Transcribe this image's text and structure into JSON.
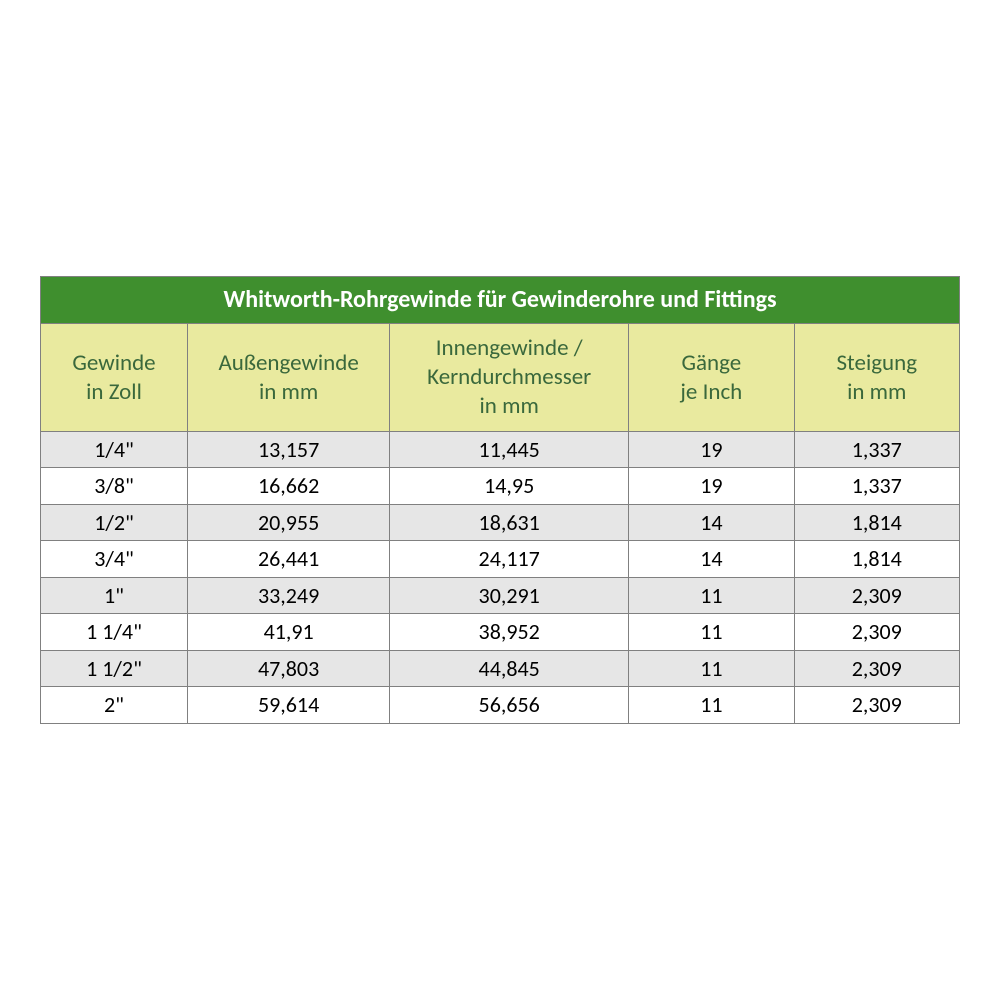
{
  "table": {
    "title": "Whitworth-Rohrgewinde für Gewinderohre und Fittings",
    "title_bg": "#3f8f2e",
    "title_color": "#ffffff",
    "header_bg": "#e9ea9f",
    "header_color": "#3a683c",
    "border_color": "#808080",
    "stripe_bg": "#e6e6e6",
    "plain_bg": "#ffffff",
    "title_fontsize": 24,
    "header_fontsize": 23,
    "cell_fontsize": 22,
    "columns": [
      {
        "label": "Gewinde\nin Zoll",
        "width_pct": 16
      },
      {
        "label": "Außengewinde\nin mm",
        "width_pct": 22
      },
      {
        "label": "Innengewinde /\nKerndurchmesser\nin mm",
        "width_pct": 26
      },
      {
        "label": "Gänge\nje Inch",
        "width_pct": 18
      },
      {
        "label": "Steigung\nin mm",
        "width_pct": 18
      }
    ],
    "rows": [
      [
        "1/4\"",
        "13,157",
        "11,445",
        "19",
        "1,337"
      ],
      [
        "3/8\"",
        "16,662",
        "14,95",
        "19",
        "1,337"
      ],
      [
        "1/2\"",
        "20,955",
        "18,631",
        "14",
        "1,814"
      ],
      [
        "3/4\"",
        "26,441",
        "24,117",
        "14",
        "1,814"
      ],
      [
        "1\"",
        "33,249",
        "30,291",
        "11",
        "2,309"
      ],
      [
        "1 1/4\"",
        "41,91",
        "38,952",
        "11",
        "2,309"
      ],
      [
        "1 1/2\"",
        "47,803",
        "44,845",
        "11",
        "2,309"
      ],
      [
        "2\"",
        "59,614",
        "56,656",
        "11",
        "2,309"
      ]
    ]
  }
}
